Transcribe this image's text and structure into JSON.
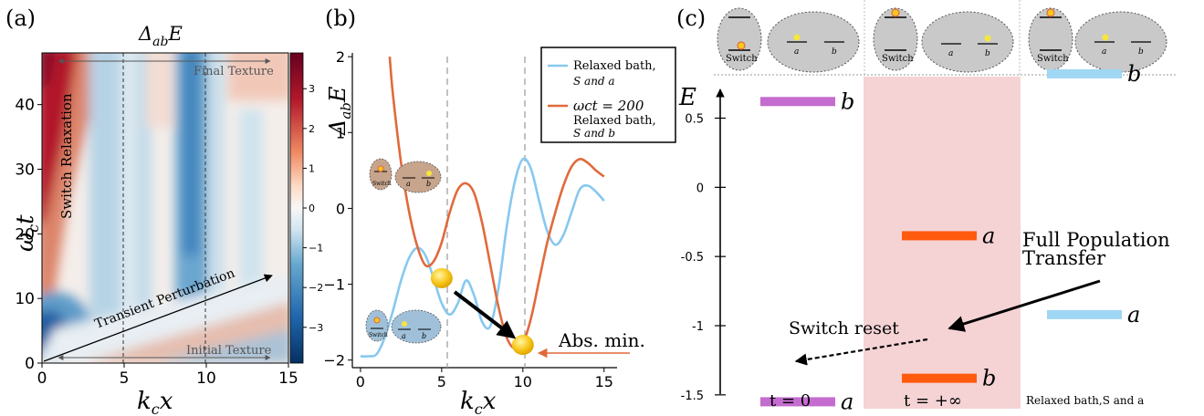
{
  "panel_a": {
    "label": "(a)",
    "title": "ΔabE",
    "title_main": "Δ",
    "title_sub": "ab",
    "title_tail": "E",
    "xlabel": "kcx",
    "xlabel_main": "k",
    "xlabel_sub": "c",
    "xlabel_tail": "x",
    "ylabel": "ωct",
    "ylabel_main": "ω",
    "ylabel_sub": "c",
    "ylabel_tail": "t",
    "annotations": {
      "final_texture": "Final Texture",
      "initial_texture": "Initial Texture",
      "switch_relaxation": "Switch Relaxation",
      "transient_perturbation": "Transient Perturbation"
    },
    "colors": {
      "red": "#b2182b",
      "white": "#f7f7f7",
      "blue": "#2166ac"
    }
  },
  "panel_b": {
    "label": "(b)",
    "legend": {
      "blue_line1": "Relaxed bath,",
      "blue_line2": "S and a",
      "orange_line1": "ωct = 200",
      "orange_line2": "Relaxed bath,",
      "orange_line3": "S and b"
    },
    "abs_min_label": "Abs. min.",
    "inset_switch": "Switch",
    "inset_a": "a",
    "inset_b": "b",
    "colors": {
      "blue": "#87c8ef",
      "orange": "#e06a3c",
      "ball": "#f7c81e"
    }
  },
  "panel_c": {
    "label": "(c)",
    "ylabel": "E",
    "ticks": [
      "0.5",
      "0",
      "-0.5",
      "-1",
      "-1.5"
    ],
    "columns": [
      "t = 0",
      "t = +∞",
      "Relaxed bath,S and a"
    ],
    "level_labels": {
      "a": "a",
      "b": "b"
    },
    "full_population_transfer_1": "Full Population",
    "full_population_transfer_2": "Transfer",
    "switch_reset": "Switch reset",
    "inset_switch": "Switch",
    "inset_a": "a",
    "inset_b": "b",
    "colors": {
      "purple": "#c46ccf",
      "orange": "#ff5a0e",
      "lightblue": "#9fd7f4",
      "pink": "#f5d3d5"
    }
  },
  "chart_data": [
    {
      "type": "heatmap",
      "title": "ΔabE",
      "xlabel": "kcx",
      "ylabel": "ωct",
      "xlim": [
        0,
        15
      ],
      "ylim": [
        0,
        48
      ],
      "xticks": [
        "0",
        "5",
        "10",
        "15"
      ],
      "yticks": [
        "0",
        "10",
        "20",
        "30",
        "40"
      ],
      "colorbar_ticks": [
        "3",
        "2",
        "1",
        "0",
        "−1",
        "−2",
        "−3"
      ],
      "colorbar_range": [
        -3.9,
        3.9
      ],
      "vlines_x": [
        5,
        10
      ]
    },
    {
      "type": "line",
      "ylabel": "ΔabE",
      "xlabel": "kcx",
      "xlim": [
        -0.5,
        15.8
      ],
      "ylim": [
        -2.1,
        2.05
      ],
      "xticks": [
        "0",
        "5",
        "10",
        "15"
      ],
      "yticks": [
        "2",
        "1",
        "0",
        "−1",
        "−2"
      ],
      "vlines_x": [
        5,
        10
      ],
      "series": [
        {
          "name": "Relaxed bath, S and a",
          "x": [
            0.0,
            0.5,
            1.0,
            1.5,
            2.0,
            2.5,
            3.0,
            3.5,
            4.0,
            4.5,
            5.0,
            5.5,
            6.0,
            6.5,
            7.0,
            7.5,
            8.0,
            8.5,
            9.0,
            9.5,
            10.0,
            10.5,
            11.0,
            11.5,
            12.0,
            12.5,
            13.0,
            13.5,
            14.0,
            14.5,
            15.0
          ],
          "y": [
            -1.95,
            -1.95,
            -1.92,
            -1.7,
            -1.35,
            -0.95,
            -0.65,
            -0.52,
            -0.62,
            -0.92,
            -1.25,
            -1.4,
            -1.25,
            -0.95,
            -1.15,
            -1.5,
            -1.55,
            -1.05,
            -0.25,
            0.35,
            0.65,
            0.52,
            0.1,
            -0.3,
            -0.48,
            -0.35,
            -0.05,
            0.25,
            0.3,
            0.22,
            0.1
          ]
        },
        {
          "name": "ωct = 200 Relaxed bath, S and b",
          "x": [
            1.8,
            2.0,
            2.5,
            3.0,
            3.5,
            4.0,
            4.5,
            5.0,
            5.5,
            6.0,
            6.5,
            7.0,
            7.5,
            8.0,
            8.5,
            9.0,
            9.5,
            10.0,
            10.5,
            11.0,
            11.5,
            12.0,
            12.5,
            13.0,
            13.5,
            14.0,
            14.5,
            15.0
          ],
          "y": [
            2.0,
            1.5,
            0.6,
            -0.05,
            -0.5,
            -0.75,
            -0.7,
            -0.45,
            -0.05,
            0.25,
            0.33,
            0.2,
            -0.2,
            -0.75,
            -1.3,
            -1.7,
            -1.85,
            -1.78,
            -1.45,
            -0.95,
            -0.45,
            -0.05,
            0.3,
            0.55,
            0.65,
            0.6,
            0.5,
            0.42
          ]
        }
      ],
      "markers": [
        {
          "x": 5.0,
          "y": -0.92
        },
        {
          "x": 10.0,
          "y": -1.8
        }
      ]
    },
    {
      "type": "bar",
      "ylabel": "E",
      "ylim": [
        -1.6,
        0.8
      ],
      "yticks": [
        "0.5",
        "0",
        "-0.5",
        "-1",
        "-1.5"
      ],
      "categories": [
        "t = 0",
        "t = +∞",
        "Relaxed bath,S and a"
      ],
      "series": [
        {
          "name": "a",
          "values": [
            -1.55,
            -0.35,
            -0.92
          ]
        },
        {
          "name": "b",
          "values": [
            0.62,
            -1.38,
            0.82
          ]
        }
      ]
    }
  ]
}
